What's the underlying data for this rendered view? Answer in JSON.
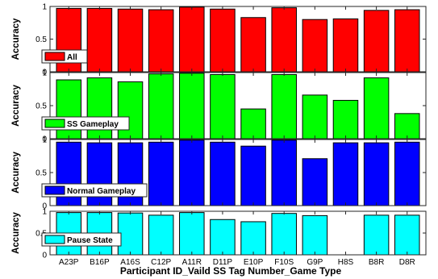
{
  "chart_data": [
    {
      "type": "bar",
      "categories": [
        "A23P",
        "B16P",
        "A16S",
        "C12P",
        "A11R",
        "D11P",
        "E10P",
        "F10S",
        "G9P",
        "H8S",
        "B8R",
        "D8R"
      ],
      "series": [
        {
          "name": "All",
          "values": [
            0.97,
            0.97,
            0.96,
            0.95,
            0.99,
            0.96,
            0.83,
            0.98,
            0.8,
            0.81,
            0.94,
            0.95
          ]
        }
      ],
      "color": "#ff0000",
      "ylabel": "Accuracy",
      "ylim": [
        0,
        1
      ],
      "yticks": [
        "0",
        "0.5",
        "1"
      ],
      "legend_position": "bottom-left"
    },
    {
      "type": "bar",
      "categories": [
        "A23P",
        "B16P",
        "A16S",
        "C12P",
        "A11R",
        "D11P",
        "E10P",
        "F10S",
        "G9P",
        "H8S",
        "B8R",
        "D8R"
      ],
      "series": [
        {
          "name": "SS Gameplay",
          "values": [
            0.89,
            0.92,
            0.86,
            0.98,
            0.99,
            0.97,
            0.45,
            0.97,
            0.66,
            0.58,
            0.92,
            0.38
          ]
        }
      ],
      "color": "#00ff00",
      "ylabel": "Accuracy",
      "ylim": [
        0,
        1
      ],
      "yticks": [
        "0",
        "0.5",
        "1"
      ],
      "legend_position": "bottom-left"
    },
    {
      "type": "bar",
      "categories": [
        "A23P",
        "B16P",
        "A16S",
        "C12P",
        "A11R",
        "D11P",
        "E10P",
        "F10S",
        "G9P",
        "H8S",
        "B8R",
        "D8R"
      ],
      "series": [
        {
          "name": "Normal Gameplay",
          "values": [
            0.96,
            0.95,
            0.95,
            0.96,
            0.99,
            0.96,
            0.9,
            0.99,
            0.71,
            0.95,
            0.95,
            0.96
          ]
        }
      ],
      "color": "#0000ff",
      "ylabel": "Accuracy",
      "ylim": [
        0,
        1
      ],
      "yticks": [
        "0",
        "0.5",
        "1"
      ],
      "legend_position": "bottom-left"
    },
    {
      "type": "bar",
      "categories": [
        "A23P",
        "B16P",
        "A16S",
        "C12P",
        "A11R",
        "D11P",
        "E10P",
        "F10S",
        "G9P",
        "H8S",
        "B8R",
        "D8R"
      ],
      "series": [
        {
          "name": "Pause State",
          "values": [
            0.97,
            0.97,
            0.96,
            0.91,
            0.97,
            0.81,
            0.76,
            0.95,
            0.9,
            0.0,
            0.91,
            0.91
          ]
        }
      ],
      "color": "#00ffff",
      "ylabel": "Accuracy",
      "ylim": [
        0,
        1
      ],
      "yticks": [
        "0",
        "0.5",
        "1"
      ],
      "legend_position": "bottom-left"
    }
  ],
  "xlabel": "Participant ID_Vaild SS Tag Number_Game Type"
}
